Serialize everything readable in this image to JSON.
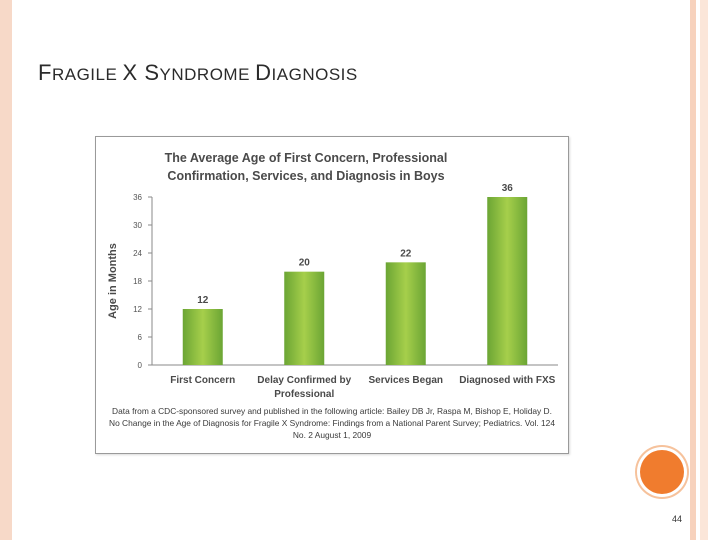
{
  "slide": {
    "title_parts": [
      "F",
      "RAGILE ",
      "X",
      " S",
      "YNDROME ",
      "D",
      "IAGNOSIS"
    ],
    "page_number": "44",
    "colors": {
      "accent_orange": "#f07c2e",
      "border_peach": "#f7d9c8",
      "bar_green_light": "#a6cf4b",
      "bar_green_dark": "#6ba534"
    }
  },
  "chart_data": {
    "type": "bar",
    "title": "The Average Age of First Concern, Professional\nConfirmation, Services, and Diagnosis in Boys",
    "ylabel": "Age in Months",
    "xlabel": "",
    "categories": [
      "First Concern",
      "Delay Confirmed by\nProfessional",
      "Services Began",
      "Diagnosed with FXS"
    ],
    "values": [
      12,
      20,
      22,
      36
    ],
    "data_labels": [
      "12",
      "20",
      "22",
      "36"
    ],
    "ylim": [
      0,
      36
    ],
    "yticks": [
      0,
      6,
      12,
      18,
      24,
      30,
      36
    ],
    "grid": false,
    "legend": "none",
    "note": "Data from a CDC-sponsored survey and published in the following article: Bailey DB Jr, Raspa M, Bishop E, Holiday D. No Change in the Age of Diagnosis for Fragile X Syndrome: Findings from a National Parent Survey; Pediatrics. Vol. 124 No. 2 August 1, 2009"
  }
}
